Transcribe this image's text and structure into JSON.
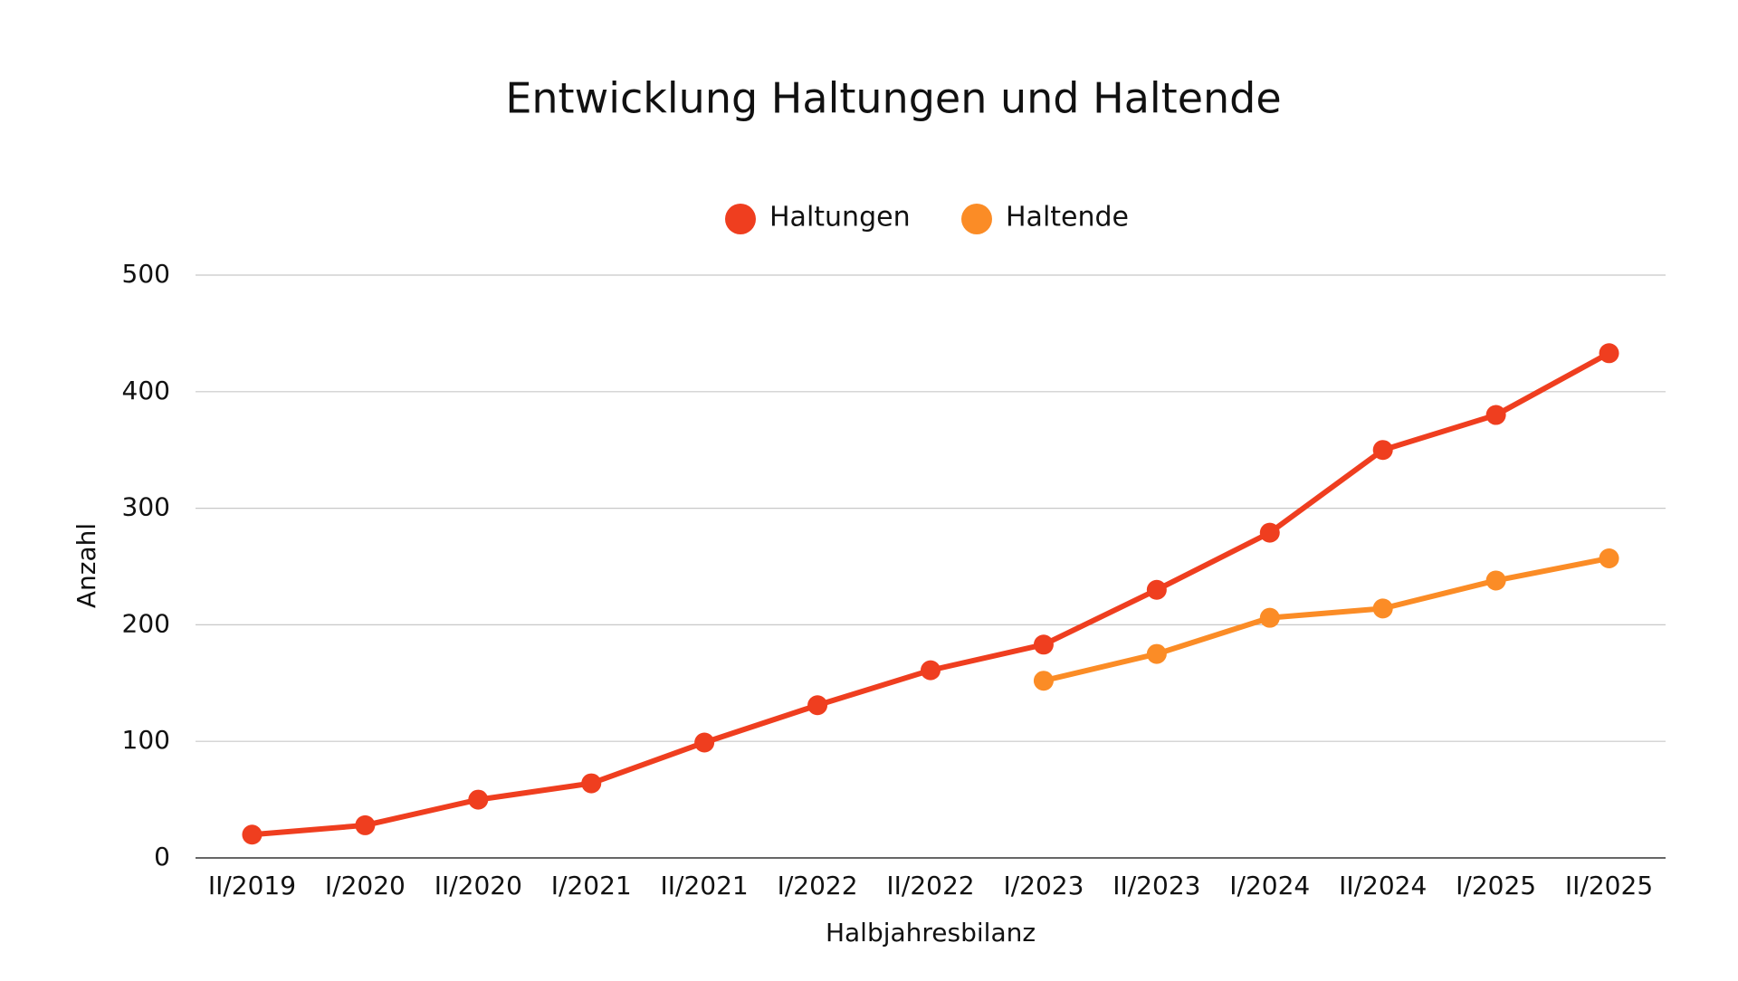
{
  "chart_data": {
    "type": "line",
    "title": "Entwicklung Haltungen und Haltende",
    "x_label": "Halbjahresbilanz",
    "y_label": "Anzahl",
    "categories": [
      "II/2019",
      "I/2020",
      "II/2020",
      "I/2021",
      "II/2021",
      "I/2022",
      "II/2022",
      "I/2023",
      "II/2023",
      "I/2024",
      "II/2024",
      "I/2025",
      "II/2025"
    ],
    "series": [
      {
        "name": "Haltungen",
        "color": "#ef3e1f",
        "values": [
          20,
          28,
          50,
          64,
          99,
          131,
          161,
          183,
          230,
          279,
          350,
          380,
          433
        ]
      },
      {
        "name": "Haltende",
        "color": "#fb8c26",
        "values": [
          null,
          null,
          null,
          null,
          null,
          null,
          null,
          152,
          175,
          206,
          214,
          238,
          257
        ]
      }
    ],
    "ylim": [
      0,
      500
    ],
    "yticks": [
      0,
      100,
      200,
      300,
      400,
      500
    ],
    "grid": true,
    "legend": "top"
  }
}
